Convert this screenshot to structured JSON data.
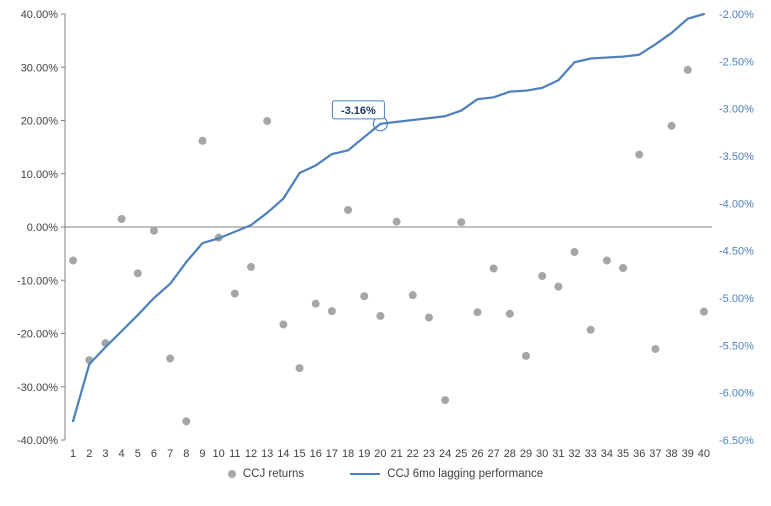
{
  "chart_data": {
    "type": "combo",
    "title": "",
    "categories": [
      1,
      2,
      3,
      4,
      5,
      6,
      7,
      8,
      9,
      10,
      11,
      12,
      13,
      14,
      15,
      16,
      17,
      18,
      19,
      20,
      21,
      22,
      23,
      24,
      25,
      26,
      27,
      28,
      29,
      30,
      31,
      32,
      33,
      34,
      35,
      36,
      37,
      38,
      39,
      40
    ],
    "series": [
      {
        "name": "CCJ returns",
        "type": "scatter",
        "axis": "left",
        "color": "#a6a6a6",
        "values": [
          -6.3,
          -25.0,
          -21.8,
          1.5,
          -8.7,
          -0.7,
          -24.7,
          -36.5,
          16.2,
          -2.0,
          -12.5,
          -7.5,
          19.9,
          -18.3,
          -26.5,
          -14.4,
          -15.8,
          3.2,
          -13.0,
          -16.7,
          1.0,
          -12.8,
          -17.0,
          -32.5,
          0.9,
          -16.0,
          -7.8,
          -16.3,
          -24.2,
          -9.2,
          -11.2,
          -4.7,
          -19.3,
          -6.3,
          -7.7,
          13.6,
          -22.9,
          19.0,
          29.5,
          -15.9
        ]
      },
      {
        "name": "CCJ 6mo lagging performance",
        "type": "line",
        "axis": "right",
        "color": "#4f81bd",
        "values": [
          -6.3,
          -5.7,
          -5.52,
          -5.35,
          -5.18,
          -5.0,
          -4.85,
          -4.62,
          -4.42,
          -4.37,
          -4.3,
          -4.23,
          -4.1,
          -3.95,
          -3.68,
          -3.6,
          -3.48,
          -3.44,
          -3.3,
          -3.16,
          -3.14,
          -3.12,
          -3.1,
          -3.08,
          -3.02,
          -2.9,
          -2.88,
          -2.82,
          -2.81,
          -2.78,
          -2.7,
          -2.51,
          -2.47,
          -2.46,
          -2.45,
          -2.43,
          -2.32,
          -2.2,
          -2.05,
          -2.0
        ]
      }
    ],
    "left_axis": {
      "min": -40,
      "max": 40,
      "step": 10,
      "tick_labels": [
        "40.00%",
        "30.00%",
        "20.00%",
        "10.00%",
        "0.00%",
        "-10.00%",
        "-20.00%",
        "-30.00%",
        "-40.00%"
      ],
      "tick_values": [
        40,
        30,
        20,
        10,
        0,
        -10,
        -20,
        -30,
        -40
      ],
      "text_color": "#404040"
    },
    "right_axis": {
      "min": -6.5,
      "max": -2.0,
      "step": 0.5,
      "tick_labels": [
        "-2.00%",
        "-2.50%",
        "-3.00%",
        "-3.50%",
        "-4.00%",
        "-4.50%",
        "-5.00%",
        "-5.50%",
        "-6.00%",
        "-6.50%"
      ],
      "tick_values": [
        -2.0,
        -2.5,
        -3.0,
        -3.5,
        -4.0,
        -4.5,
        -5.0,
        -5.5,
        -6.0,
        -6.5
      ],
      "text_color": "#4f81bd"
    },
    "annotation": {
      "label": "-3.16%",
      "category": 20,
      "value": -3.16,
      "box_border_color": "#4f81bd",
      "text_color": "#17375e"
    },
    "zero_line_color": "#808080",
    "axis_line_color": "#808080",
    "legend_position": "bottom",
    "grid": false
  },
  "legend": {
    "items": [
      {
        "label": "CCJ returns",
        "marker": "gray-dot"
      },
      {
        "label": "CCJ 6mo lagging performance",
        "marker": "blue-line"
      }
    ]
  }
}
